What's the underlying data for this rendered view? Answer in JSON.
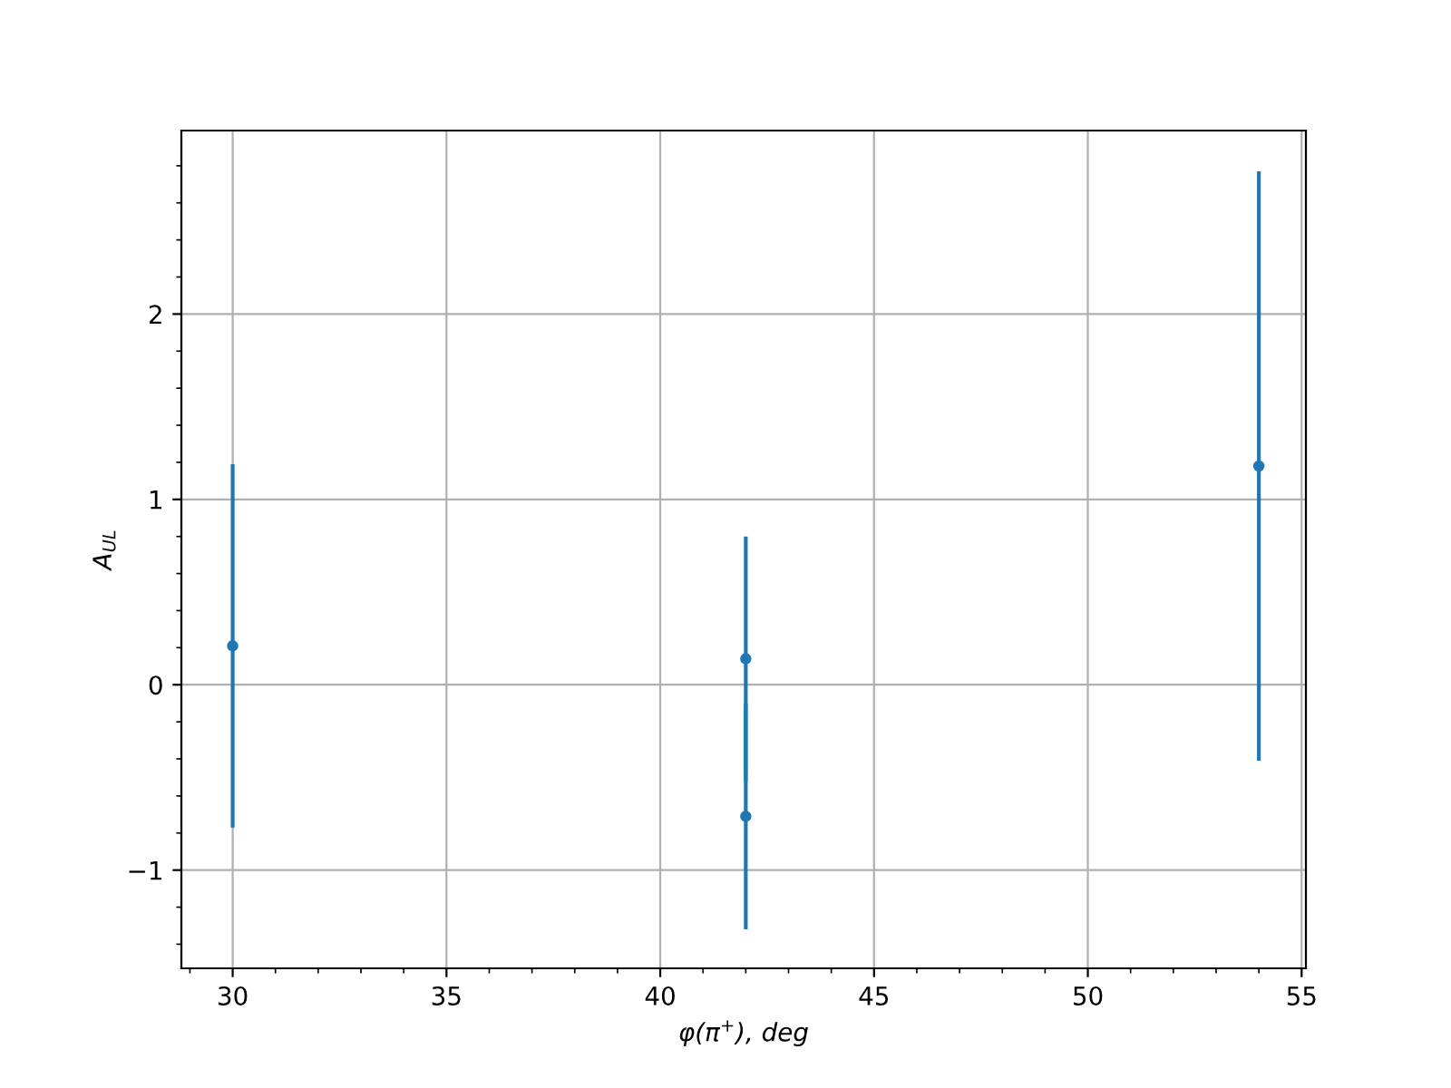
{
  "chart_data": {
    "type": "scatter",
    "xlabel": "φ(π$^{+}$), deg",
    "ylabel": "A$_{UL}$",
    "x": [
      30,
      42,
      42,
      54
    ],
    "series": [
      {
        "color": "#1f77b4",
        "values": [
          0.21,
          0.14,
          -0.71,
          1.18
        ],
        "errors": [
          0.98,
          0.66,
          0.61,
          1.59
        ]
      }
    ],
    "marker": "circle",
    "grid": true,
    "xlim": [
      28.8,
      55.1
    ],
    "ylim": [
      -1.53,
      2.99
    ],
    "xticks": [
      {
        "value": 29,
        "label": null
      },
      30,
      {
        "value": 31,
        "label": null
      },
      {
        "value": 32,
        "label": null
      },
      {
        "value": 33,
        "label": null
      },
      {
        "value": 34,
        "label": null
      },
      35,
      {
        "value": 36,
        "label": null
      },
      {
        "value": 37,
        "label": null
      },
      {
        "value": 38,
        "label": null
      },
      {
        "value": 39,
        "label": null
      },
      40,
      {
        "value": 41,
        "label": null
      },
      {
        "value": 42,
        "label": null
      },
      {
        "value": 43,
        "label": null
      },
      {
        "value": 44,
        "label": null
      },
      45,
      {
        "value": 46,
        "label": null
      },
      {
        "value": 47,
        "label": null
      },
      {
        "value": 48,
        "label": null
      },
      {
        "value": 49,
        "label": null
      },
      50,
      {
        "value": 51,
        "label": null
      },
      {
        "value": 52,
        "label": null
      },
      {
        "value": 53,
        "label": null
      },
      {
        "value": 54,
        "label": null
      },
      55
    ],
    "yticks": [
      {
        "value": -1.4,
        "label": null
      },
      {
        "value": -1.2,
        "label": null
      },
      {
        "value": -1,
        "label": "−1"
      },
      {
        "value": -0.8,
        "label": null
      },
      {
        "value": -0.6,
        "label": null
      },
      {
        "value": -0.4,
        "label": null
      },
      {
        "value": -0.2,
        "label": null
      },
      0,
      {
        "value": 0.2,
        "label": null
      },
      {
        "value": 0.4,
        "label": null
      },
      {
        "value": 0.6,
        "label": null
      },
      {
        "value": 0.8,
        "label": null
      },
      1,
      {
        "value": 1.2,
        "label": null
      },
      {
        "value": 1.4,
        "label": null
      },
      {
        "value": 1.6,
        "label": null
      },
      {
        "value": 1.8,
        "label": null
      },
      2,
      {
        "value": 2.2,
        "label": null
      },
      {
        "value": 2.4,
        "label": null
      },
      {
        "value": 2.6,
        "label": null
      },
      {
        "value": 2.8,
        "label": null
      }
    ]
  }
}
